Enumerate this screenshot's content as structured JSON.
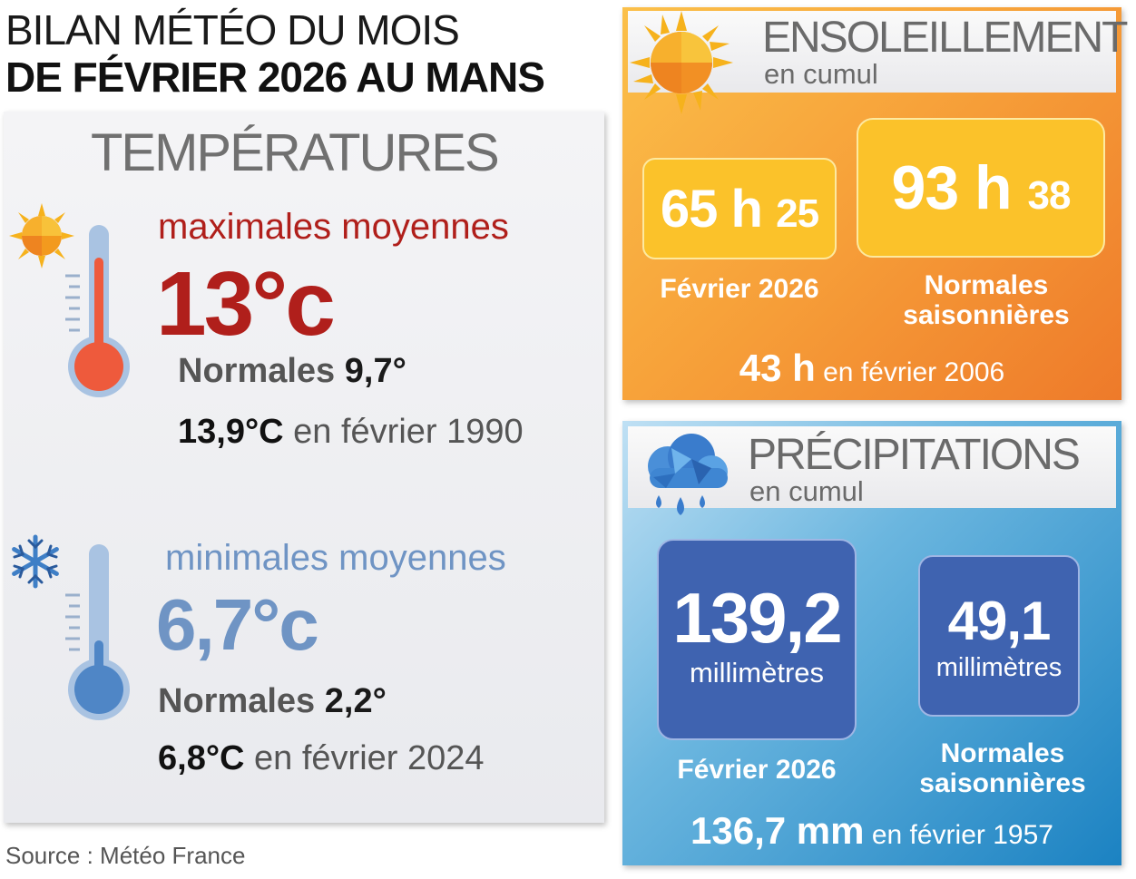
{
  "header": {
    "title_line1": "BILAN MÉTÉO DU MOIS",
    "title_line2": "DE FÉVRIER 2026 AU MANS"
  },
  "temperatures": {
    "title": "TEMPÉRATURES",
    "max": {
      "label": "maximales moyennes",
      "value": "13°c",
      "normal_label": "Normales",
      "normal_value": "9,7°",
      "record_value": "13,9°C",
      "record_text": " en février 1990"
    },
    "min": {
      "label": "minimales moyennes",
      "value": "6,7°c",
      "normal_label": "Normales",
      "normal_value": "2,2°",
      "record_value": "6,8°C",
      "record_text": " en février 2024"
    }
  },
  "sunshine": {
    "title": "ENSOLEILLEMENT",
    "subtitle": "en cumul",
    "current_hours": "65 h",
    "current_minutes": "25",
    "current_caption": "Février 2026",
    "normal_hours": "93 h",
    "normal_minutes": "38",
    "normal_caption": "Normales saisonnières",
    "record_value": "43 h",
    "record_text": " en février 2006"
  },
  "precipitation": {
    "title": "PRÉCIPITATIONS",
    "subtitle": "en cumul",
    "current_value": "139,2",
    "current_unit": "millimètres",
    "current_caption": "Février 2026",
    "normal_value": "49,1",
    "normal_unit": "millimètres",
    "normal_caption": "Normales saisonnières",
    "record_value": "136,7 mm",
    "record_text": " en février 1957"
  },
  "source": "Source : Météo France",
  "colors": {
    "max_red": "#b01f1b",
    "min_blue": "#6f94c4",
    "sun_orange": "#f7a23a",
    "sun_box": "#fbc22a",
    "rain_blue": "#1b82c2",
    "rain_box": "#3f63b0"
  },
  "icons": {
    "sun": "sun-icon",
    "snowflake": "snowflake-icon",
    "thermometer_hot": "thermometer-icon",
    "thermometer_cold": "thermometer-icon",
    "cloud_rain": "rain-cloud-icon"
  }
}
